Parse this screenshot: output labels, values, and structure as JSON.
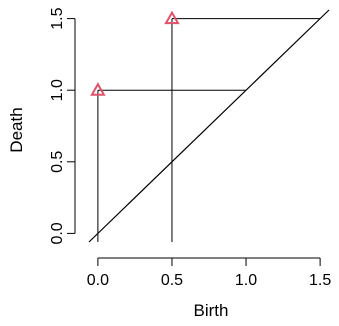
{
  "chart_data": {
    "type": "scatter",
    "title": "",
    "xlabel": "Birth",
    "ylabel": "Death",
    "xlim": [
      -0.06,
      1.56
    ],
    "ylim": [
      -0.06,
      1.56
    ],
    "x_ticks": [
      {
        "value": 0.0,
        "label": "0.0"
      },
      {
        "value": 0.5,
        "label": "0.5"
      },
      {
        "value": 1.0,
        "label": "1.0"
      },
      {
        "value": 1.5,
        "label": "1.5"
      }
    ],
    "y_ticks": [
      {
        "value": 0.0,
        "label": "0.0"
      },
      {
        "value": 0.5,
        "label": "0.5"
      },
      {
        "value": 1.0,
        "label": "1.0"
      },
      {
        "value": 1.5,
        "label": "1.5"
      }
    ],
    "marker": "triangle",
    "point_color": "#DF536B",
    "line_color": "#000000",
    "points": [
      {
        "birth": 0.0,
        "death": 1.0
      },
      {
        "birth": 0.5,
        "death": 1.5
      }
    ],
    "diagonal": true,
    "grid": false,
    "legend": "none"
  }
}
